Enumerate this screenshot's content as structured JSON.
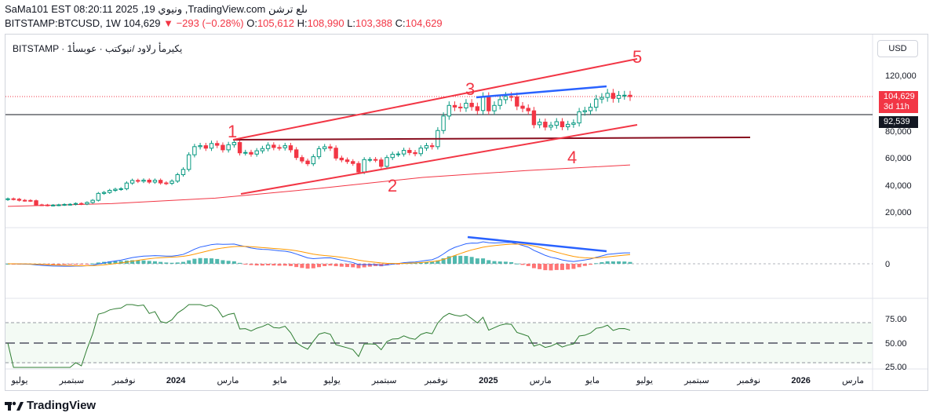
{
  "header": {
    "line1": "SaMa101 EST 08:20:11 2025 ,19 ونيوي ,TradingView.com ىلع ترشن",
    "symbol": "BITSTAMP:BTCUSD, 1W",
    "price": "104,629",
    "change": "−293 (−0.28%)",
    "o_label": "O:",
    "o_val": "105,612",
    "h_label": "H:",
    "h_val": "108,990",
    "l_label": "L:",
    "l_val": "103,388",
    "c_label": "C:",
    "c_val": "104,629"
  },
  "symbol_title": "BITSTAMP · يكيرمأ رلاود /نيوكتب · عوبسأ1",
  "currency_button": "USD",
  "price_badge": {
    "price": "104,629",
    "countdown": "3d 11h",
    "line": "92,539"
  },
  "colors": {
    "up": "#089981",
    "down": "#f23645",
    "annotation": "#f23645",
    "divergence": "#2962ff",
    "support": "#880e1f",
    "ma": "#f23645",
    "macd": "#2962ff",
    "signal": "#ff9800",
    "rsi": "#2e7d32"
  },
  "annotations": [
    "1",
    "2",
    "3",
    "4",
    "5"
  ],
  "chart_data": {
    "type": "candlestick",
    "price_axis": {
      "ticks": [
        "120,000",
        "100,000",
        "80,000",
        "60,000",
        "40,000",
        "20,000"
      ],
      "ylim": [
        4000,
        131000
      ]
    },
    "macd_axis": {
      "ticks": [
        "0"
      ]
    },
    "rsi_axis": {
      "ticks": [
        "75.00",
        "50.00",
        "25.00"
      ],
      "levels": [
        70,
        50,
        30
      ]
    },
    "time_axis": {
      "ticks": [
        "يوليو",
        "سبتمبر",
        "نوفمبر",
        "2024",
        "مارس",
        "مايو",
        "يوليو",
        "سبتمبر",
        "نوفمبر",
        "2025",
        "مارس",
        "مايو",
        "يوليو",
        "سبتمبر",
        "نوفمبر",
        "2026",
        "مارس"
      ]
    },
    "weekly_close": [
      30500,
      30200,
      29400,
      29300,
      29100,
      26100,
      26000,
      25800,
      25900,
      26100,
      26400,
      26500,
      27100,
      26700,
      27800,
      29400,
      34400,
      35100,
      36600,
      37400,
      37800,
      41900,
      43800,
      43200,
      44000,
      42600,
      43900,
      42000,
      41700,
      43300,
      48000,
      51800,
      62400,
      68300,
      69000,
      67200,
      70600,
      69300,
      66000,
      69700,
      71300,
      63800,
      64100,
      62900,
      65300,
      66900,
      69400,
      67700,
      67500,
      69000,
      66000,
      60400,
      57900,
      55900,
      61000,
      66800,
      68200,
      67200,
      60000,
      58700,
      57500,
      56100,
      49900,
      58900,
      59000,
      58700,
      54000,
      60400,
      62800,
      63000,
      65600,
      64000,
      63200,
      67300,
      69000,
      68300,
      80000,
      90500,
      98200,
      97000,
      96400,
      99800,
      97300,
      94500,
      104600,
      94300,
      98200,
      102400,
      104700,
      104400,
      97700,
      96100,
      94300,
      84200,
      86100,
      82500,
      83800,
      86400,
      82700,
      84500,
      85500,
      93600,
      94400,
      96900,
      102800,
      104000,
      107000,
      103300,
      105500,
      105600,
      104600
    ],
    "ma_200w_points": [
      25000,
      27000,
      31000,
      38000,
      46000,
      51000,
      55000
    ],
    "annotations": [
      {
        "label": "1",
        "value": 73000
      },
      {
        "label": "2",
        "value": 49000
      },
      {
        "label": "3",
        "value": 108000
      },
      {
        "label": "4",
        "value": 76000
      },
      {
        "label": "5",
        "value": 130000
      }
    ]
  }
}
